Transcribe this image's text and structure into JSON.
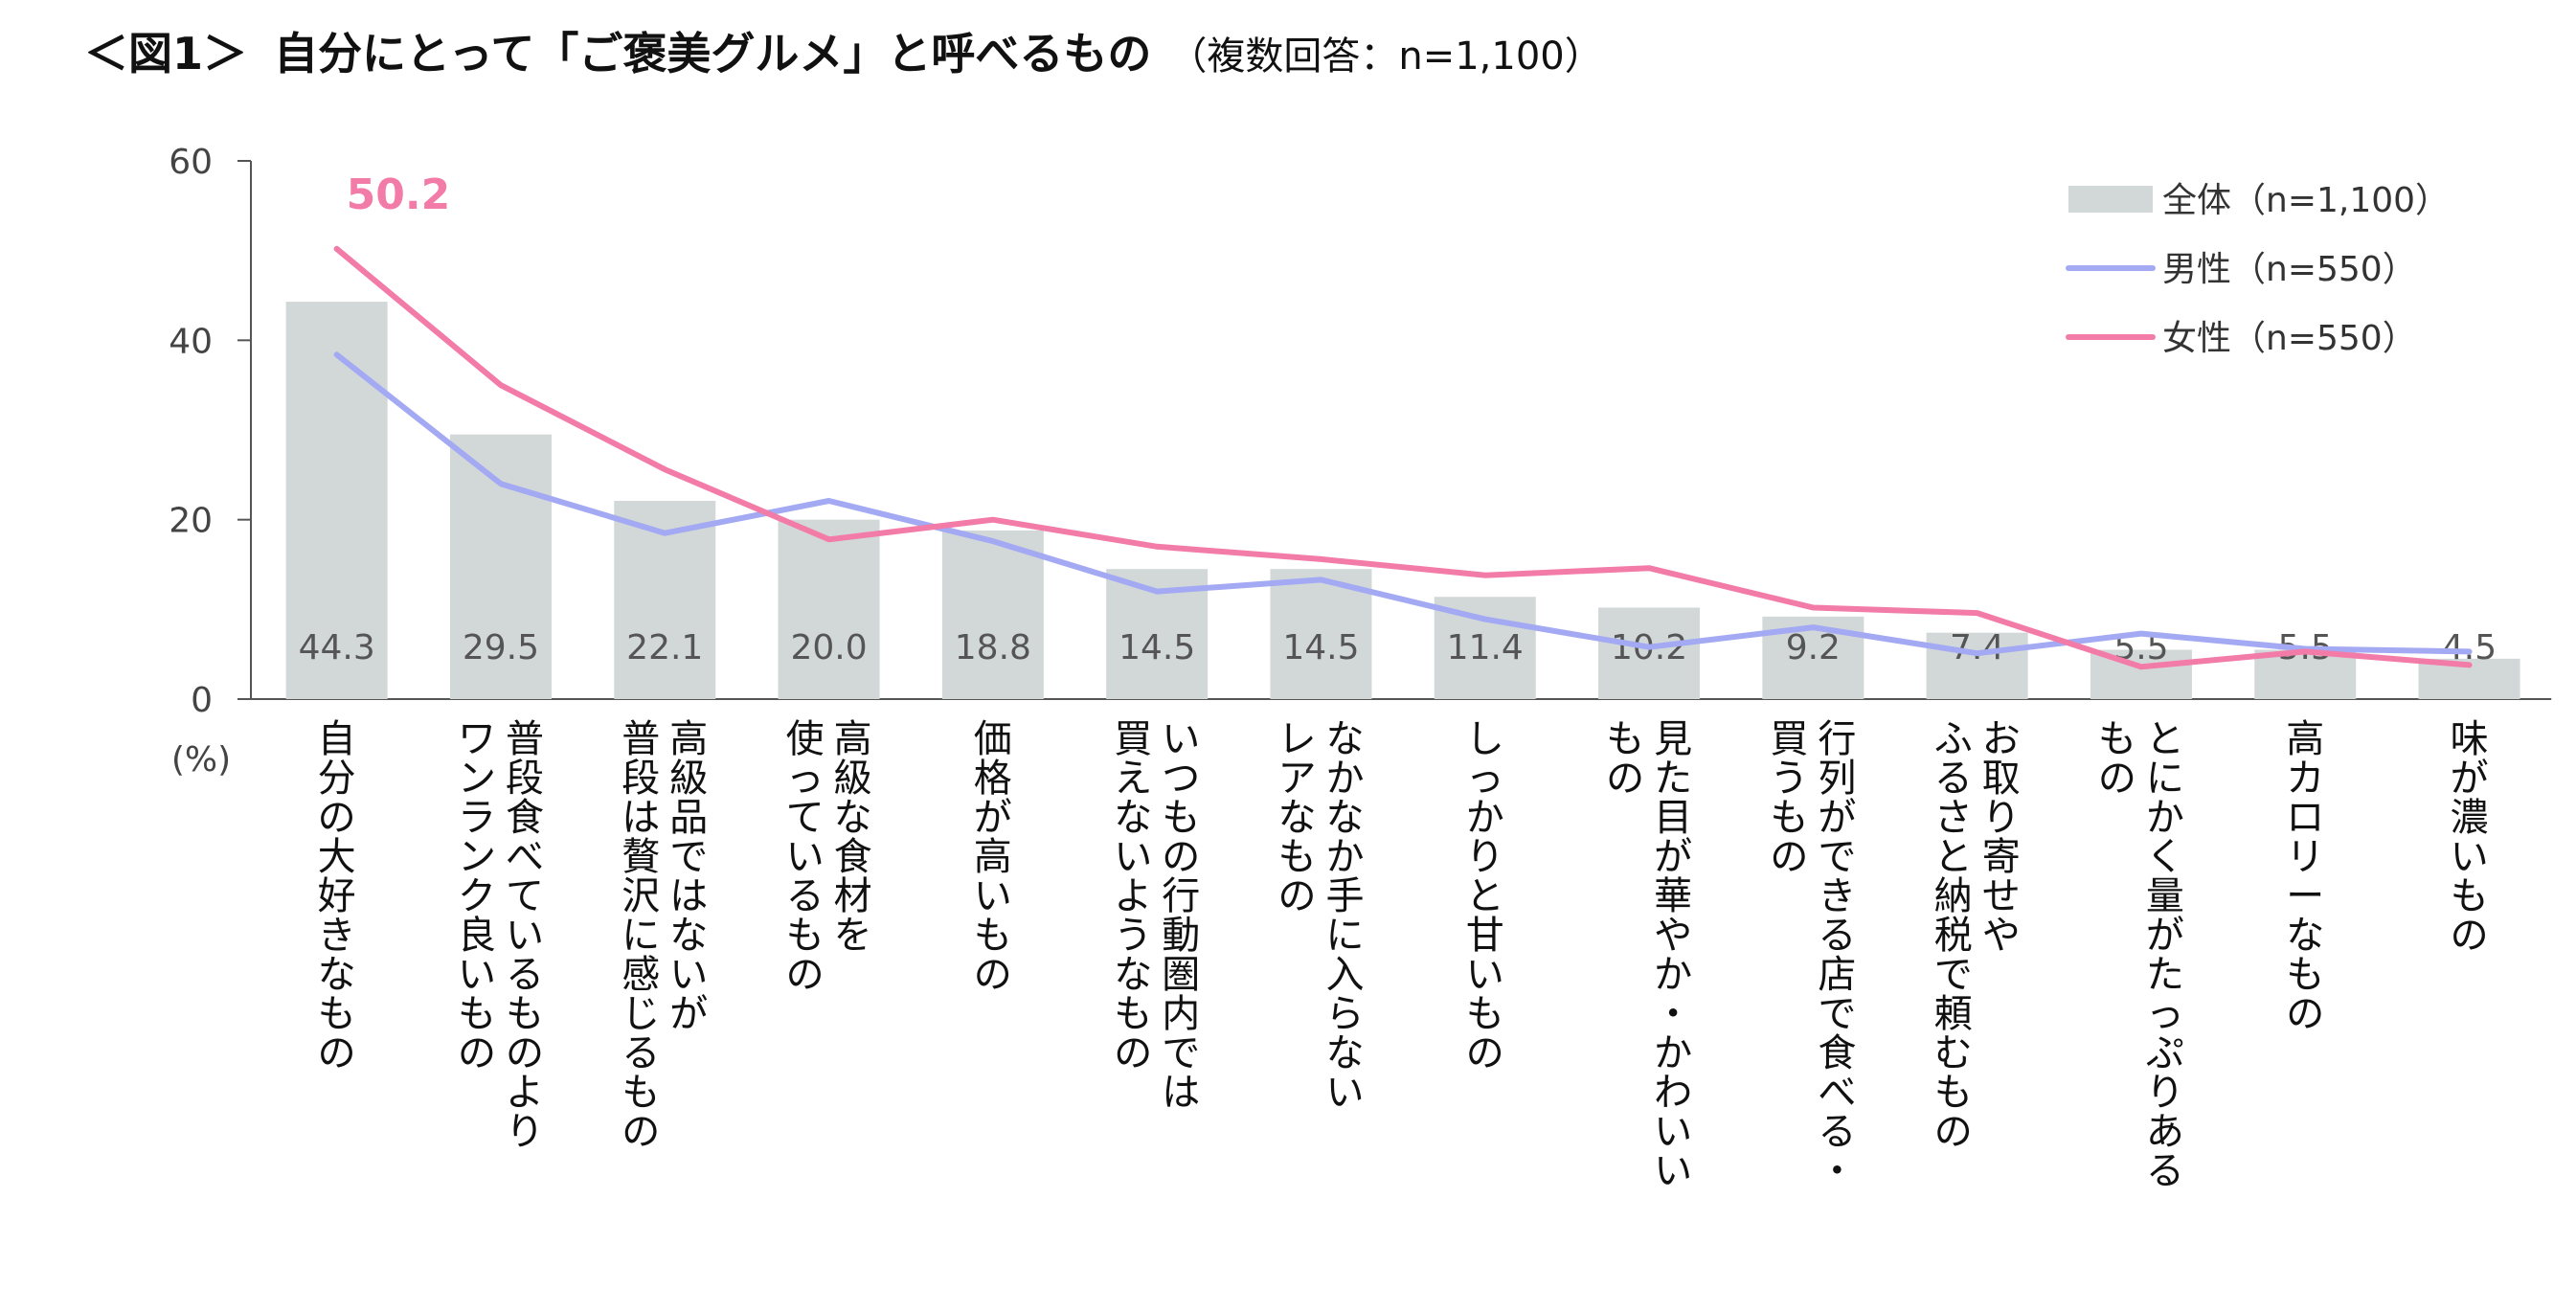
{
  "figure_label": "＜図1＞",
  "title": "自分にとって「ご褒美グルメ」と呼べるもの",
  "subtitle": "（複数回答：n=1,100）",
  "unit_label": "(%)",
  "chart_data": {
    "type": "bar+line",
    "categories": [
      "自分の大好きなもの",
      "普段食べているものよりワンランク良いもの",
      "高級品ではないが普段は贅沢に感じるもの",
      "高級な食材を使っているもの",
      "価格が高いもの",
      "いつもの行動圏内では買えないようなもの",
      "なかなか手に入らないレアなもの",
      "しっかりと甘いもの",
      "見た目が華やか・かわいいもの",
      "行列ができる店で食べる・買うもの",
      "お取り寄せやふるさと納税で頼むもの",
      "とにかく量がたっぷりあるもの",
      "高カロリーなもの",
      "味が濃いもの"
    ],
    "category_lines": [
      [
        "自分の大好きなもの"
      ],
      [
        "普段食べているものより",
        "ワンランク良いもの"
      ],
      [
        "高級品ではないが",
        "普段は贅沢に感じるもの"
      ],
      [
        "高級な食材を",
        "使っているもの"
      ],
      [
        "価格が高いもの"
      ],
      [
        "いつもの行動圏内では",
        "買えないようなもの"
      ],
      [
        "なかなか手に入らない",
        "レアなもの"
      ],
      [
        "しっかりと甘いもの"
      ],
      [
        "見た目が華やか・かわいい",
        "もの"
      ],
      [
        "行列ができる店で食べる・",
        "買うもの"
      ],
      [
        "お取り寄せや",
        "ふるさと納税で頼むもの"
      ],
      [
        "とにかく量がたっぷりある",
        "もの"
      ],
      [
        "高カロリーなもの"
      ],
      [
        "味が濃いもの"
      ]
    ],
    "series": [
      {
        "name": "全体（n=1,100）",
        "kind": "bar",
        "color": "#d2d8d8",
        "values": [
          44.3,
          29.5,
          22.1,
          20.0,
          18.8,
          14.5,
          14.5,
          11.4,
          10.2,
          9.2,
          7.4,
          5.5,
          5.5,
          4.5
        ],
        "labels": [
          "44.3",
          "29.5",
          "22.1",
          "20.0",
          "18.8",
          "14.5",
          "14.5",
          "11.4",
          "10.2",
          "9.2",
          "7.4",
          "5.5",
          "5.5",
          "4.5"
        ]
      },
      {
        "name": "男性（n=550）",
        "kind": "line",
        "color": "#a3a9f2",
        "values": [
          38.4,
          24.0,
          18.5,
          22.1,
          17.6,
          12.0,
          13.3,
          8.9,
          5.8,
          8.0,
          5.1,
          7.3,
          5.6,
          5.3
        ]
      },
      {
        "name": "女性（n=550）",
        "kind": "line",
        "color": "#f27ba8",
        "values": [
          50.2,
          35.0,
          25.6,
          17.8,
          20.0,
          17.0,
          15.6,
          13.8,
          14.6,
          10.2,
          9.6,
          3.6,
          5.3,
          3.8
        ]
      }
    ],
    "highlight": {
      "series": 2,
      "index": 0,
      "label": "50.2"
    },
    "ylim": [
      0,
      60
    ],
    "yticks": [
      0,
      20,
      40,
      60
    ],
    "grid": false,
    "legend_position": "top-right"
  }
}
